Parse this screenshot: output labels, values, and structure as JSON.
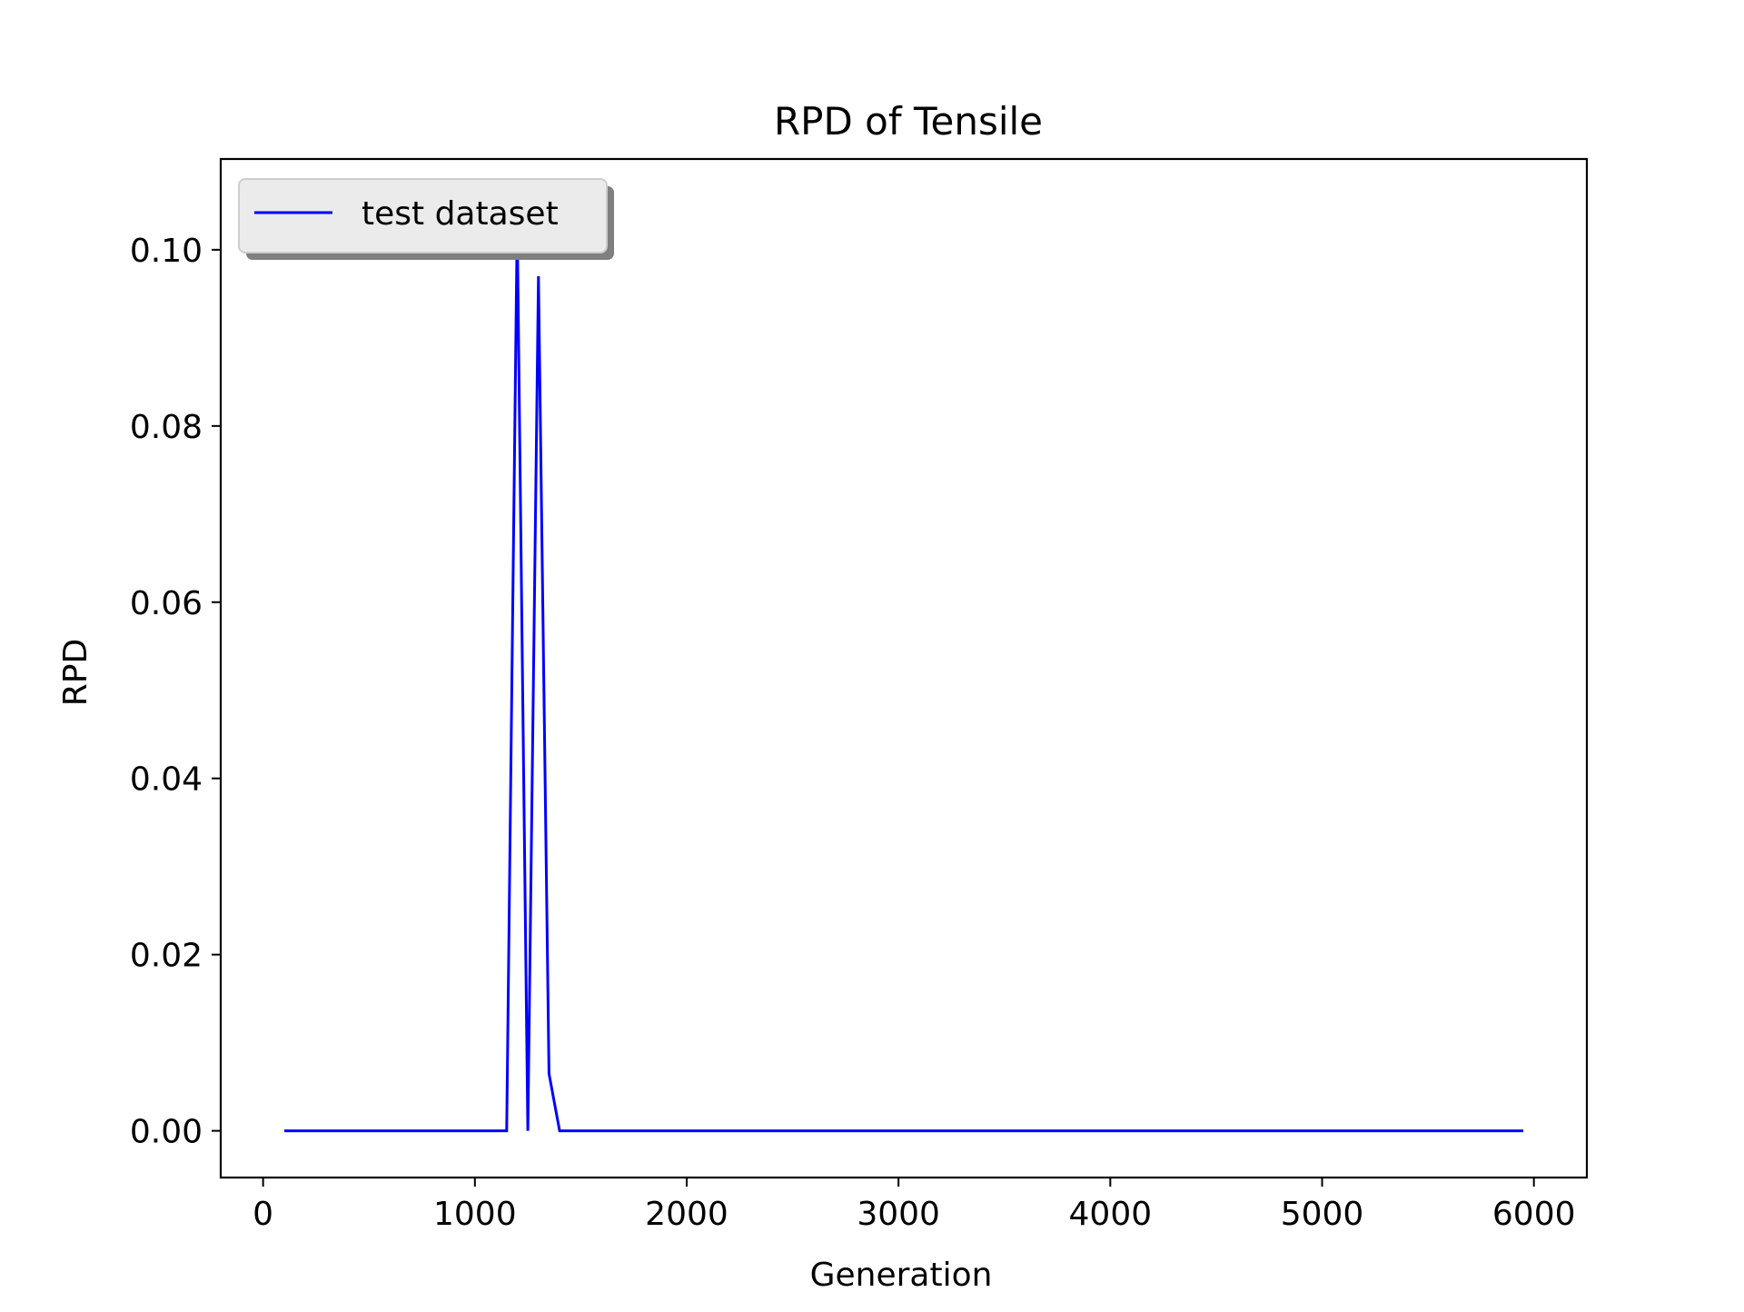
{
  "chart_data": {
    "type": "line",
    "title": "RPD of Tensile",
    "xlabel": "Generation",
    "ylabel": "RPD",
    "xlim": [
      -200,
      6250
    ],
    "ylim": [
      -0.0053,
      0.1103
    ],
    "xticks": [
      0,
      1000,
      2000,
      3000,
      4000,
      5000,
      6000
    ],
    "xtick_labels": [
      "0",
      "1000",
      "2000",
      "3000",
      "4000",
      "5000",
      "6000"
    ],
    "yticks": [
      0.0,
      0.02,
      0.04,
      0.06,
      0.08,
      0.1
    ],
    "ytick_labels": [
      "0.00",
      "0.02",
      "0.04",
      "0.06",
      "0.08",
      "0.10"
    ],
    "grid": false,
    "legend": {
      "location": "upper left",
      "entries": [
        "test dataset"
      ]
    },
    "series": [
      {
        "name": "test dataset",
        "color": "#0000ff",
        "x": [
          100,
          1150,
          1200,
          1250,
          1300,
          1350,
          1400,
          5950
        ],
        "y": [
          0.0,
          0.0,
          0.103,
          0.0,
          0.097,
          0.0065,
          0.0,
          0.0
        ]
      }
    ]
  }
}
